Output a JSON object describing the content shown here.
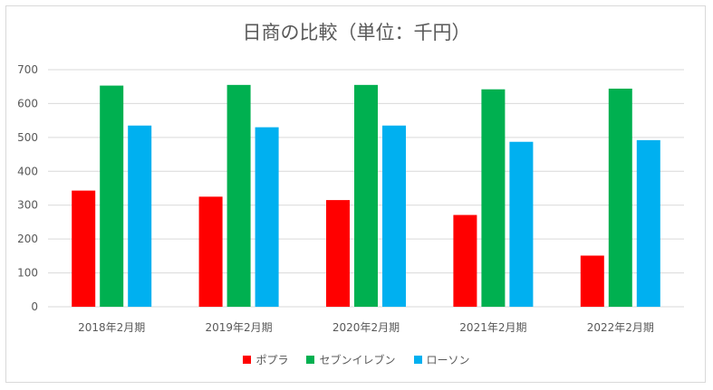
{
  "chart_data": {
    "type": "bar",
    "title": "日商の比較（単位：千円）",
    "categories": [
      "2018年2月期",
      "2019年2月期",
      "2020年2月期",
      "2021年2月期",
      "2022年2月期"
    ],
    "series": [
      {
        "name": "ポプラ",
        "color": "#ff0000",
        "values": [
          343,
          325,
          315,
          271,
          151
        ]
      },
      {
        "name": "セブンイレブン",
        "color": "#00b050",
        "values": [
          653,
          655,
          655,
          642,
          644
        ]
      },
      {
        "name": "ローソン",
        "color": "#00b0f0",
        "values": [
          535,
          530,
          535,
          487,
          492
        ]
      }
    ],
    "yticks": [
      "0",
      "100",
      "200",
      "300",
      "400",
      "500",
      "600",
      "700"
    ],
    "ylim": [
      0,
      700
    ],
    "grid": true,
    "legend_position": "bottom",
    "gridline_color": "#d9d9d9"
  }
}
